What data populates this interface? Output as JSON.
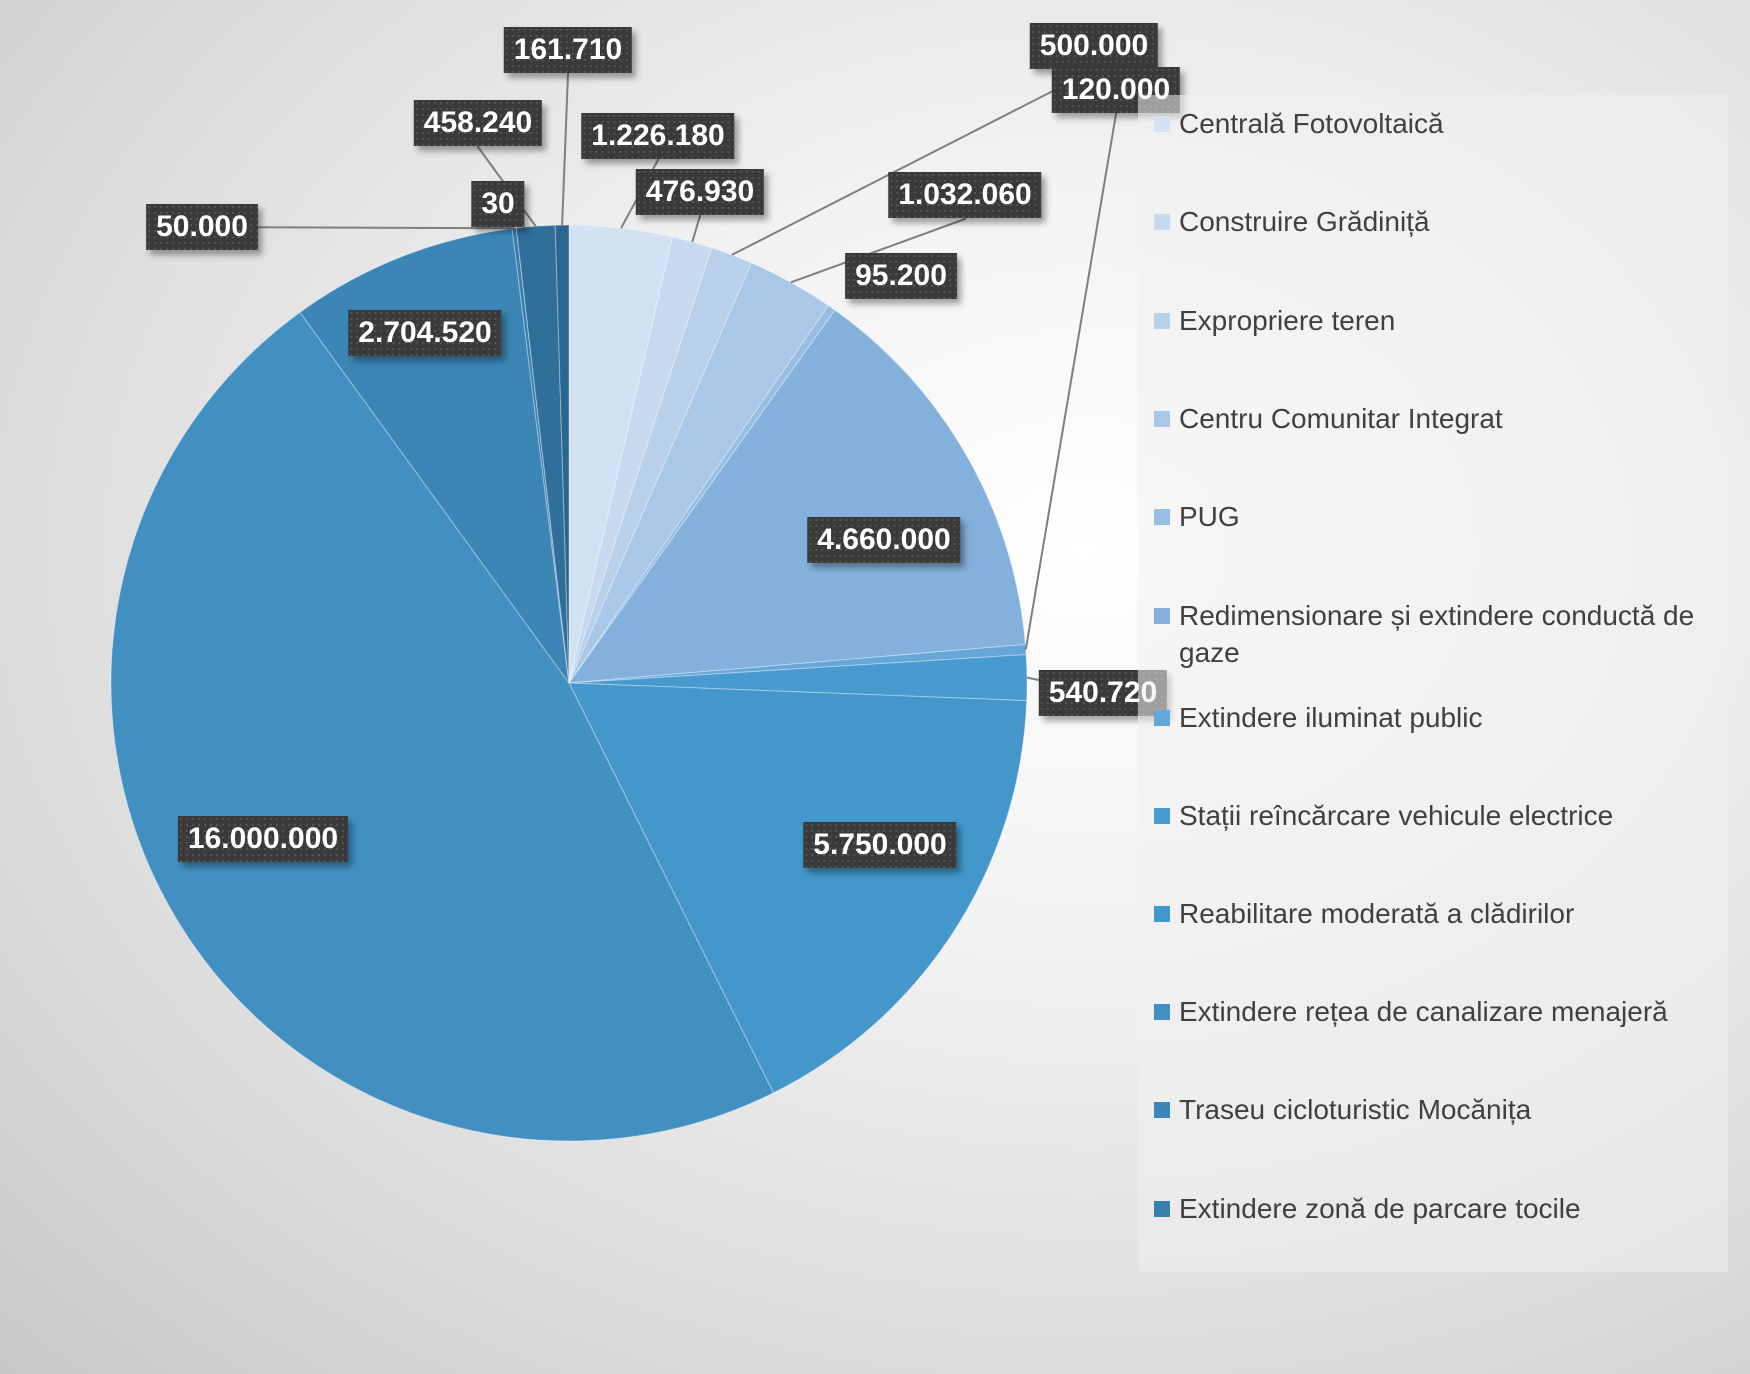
{
  "chart_data": {
    "type": "pie",
    "title": "",
    "slices": [
      {
        "name": "Centrală Fotovoltaică",
        "value": 1226180,
        "label": "1.226.180",
        "color": "#d3e2f2"
      },
      {
        "name": "Construire Grădiniță",
        "value": 476930,
        "label": "476.930",
        "color": "#c6d9ee"
      },
      {
        "name": "Expropriere teren",
        "value": 500000,
        "label": "500.000",
        "color": "#b8d0ea"
      },
      {
        "name": "Centru Comunitar Integrat",
        "value": 1032060,
        "label": "1.032.060",
        "color": "#a9c7e6"
      },
      {
        "name": "PUG",
        "value": 95200,
        "label": "95.200",
        "color": "#98bde2"
      },
      {
        "name": "Redimensionare și extindere conductă de gaze",
        "value": 4660000,
        "label": "4.660.000",
        "color": "#84b1dc"
      },
      {
        "name": "Extindere iluminat public",
        "value": 120000,
        "label": "120.000",
        "color": "#66a7d9"
      },
      {
        "name": "Stații reîncărcare vehicule electrice",
        "value": 540720,
        "label": "540.720",
        "color": "#4a9ad2"
      },
      {
        "name": "Reabilitare moderată a clădirilor",
        "value": 5750000,
        "label": "5.750.000",
        "color": "#4497ca"
      },
      {
        "name": "Extindere rețea de canalizare menajeră",
        "value": 16000000,
        "label": "16.000.000",
        "color": "#4290c2"
      },
      {
        "name": "Traseu cicloturistic Mocănița",
        "value": 2704520,
        "label": "2.704.520",
        "color": "#3b86b6"
      },
      {
        "name": "Extindere zonă de parcare tocile",
        "value": 50000,
        "label": "50.000",
        "color": "#387fae"
      },
      {
        "name": "",
        "value": 30,
        "label": "30",
        "color": "#3479a6"
      },
      {
        "name": "",
        "value": 458240,
        "label": "458.240",
        "color": "#2f6f9a"
      },
      {
        "name": "",
        "value": 161710,
        "label": "161.710",
        "color": "#2a6690"
      }
    ],
    "legend": {
      "placement": "right"
    }
  }
}
